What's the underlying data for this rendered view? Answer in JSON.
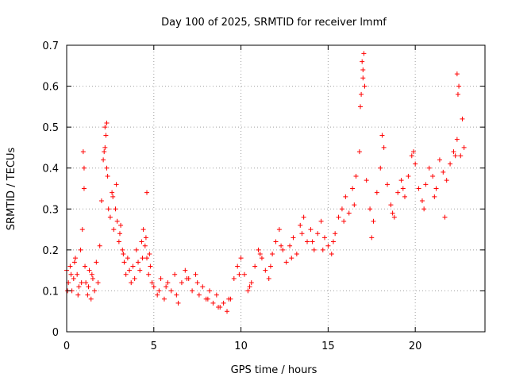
{
  "chart_data": {
    "type": "scatter",
    "title": "Day 100 of 2025, SRMTID for receiver lmmf",
    "xlabel": "GPS time / hours",
    "ylabel": "SRMTID / TECUs",
    "xlim": [
      0,
      24
    ],
    "ylim": [
      0,
      0.7
    ],
    "xticks": [
      0,
      5,
      10,
      15,
      20
    ],
    "xtick_labels": [
      "0",
      "5",
      "10",
      "15",
      "20"
    ],
    "yticks": [
      0,
      0.1,
      0.2,
      0.3,
      0.4,
      0.5,
      0.6,
      0.7
    ],
    "ytick_labels": [
      "0",
      "0.1",
      "0.2",
      "0.3",
      "0.4",
      "0.5",
      "0.6",
      "0.7"
    ],
    "grid": true,
    "marker": "+",
    "series": [
      {
        "name": "SRMTID",
        "color": "#ff0000",
        "sampling_note": "representative subset of plotted points",
        "x": [
          0.0,
          0.1,
          0.2,
          0.3,
          0.4,
          0.5,
          0.6,
          0.7,
          0.8,
          0.9,
          1.0,
          1.1,
          1.2,
          1.3,
          1.4,
          1.5,
          1.6,
          1.7,
          1.8,
          1.9,
          2.0,
          2.1,
          2.2,
          2.3,
          2.4,
          2.5,
          2.6,
          2.7,
          2.8,
          2.9,
          3.0,
          3.1,
          3.2,
          3.3,
          3.4,
          3.5,
          3.6,
          3.7,
          3.8,
          3.9,
          4.0,
          4.1,
          4.2,
          4.3,
          4.4,
          4.5,
          4.6,
          4.7,
          4.8,
          4.9,
          5.0,
          5.2,
          5.4,
          5.6,
          5.8,
          6.0,
          6.2,
          6.4,
          6.6,
          6.8,
          7.0,
          7.2,
          7.4,
          7.6,
          7.8,
          8.0,
          8.2,
          8.4,
          8.6,
          8.8,
          9.0,
          9.2,
          9.4,
          9.6,
          9.8,
          10.0,
          10.2,
          10.4,
          10.6,
          10.8,
          11.0,
          11.2,
          11.4,
          11.6,
          11.8,
          12.0,
          12.2,
          12.4,
          12.6,
          12.8,
          13.0,
          13.2,
          13.4,
          13.6,
          13.8,
          14.0,
          14.2,
          14.4,
          14.6,
          14.8,
          15.0,
          15.2,
          15.4,
          15.6,
          15.8,
          16.0,
          16.2,
          16.4,
          16.6,
          16.8,
          16.9,
          17.0,
          17.1,
          17.2,
          17.4,
          17.6,
          17.8,
          18.0,
          18.2,
          18.4,
          18.6,
          18.8,
          19.0,
          19.2,
          19.4,
          19.6,
          19.8,
          20.0,
          20.2,
          20.4,
          20.6,
          20.8,
          21.0,
          21.2,
          21.4,
          21.6,
          21.8,
          22.0,
          22.2,
          22.4,
          22.6,
          22.8,
          0.05,
          0.25,
          0.45,
          0.65,
          0.85,
          1.05,
          1.25,
          1.45,
          2.15,
          2.25,
          2.35,
          2.65,
          2.85,
          3.05,
          3.25,
          4.35,
          4.55,
          4.75,
          5.3,
          5.7,
          6.3,
          6.9,
          7.5,
          8.1,
          8.7,
          9.3,
          9.9,
          10.5,
          11.1,
          11.7,
          12.3,
          12.9,
          13.5,
          14.1,
          14.7,
          15.3,
          15.9,
          16.5,
          16.95,
          17.05,
          17.5,
          18.1,
          18.7,
          19.3,
          19.9,
          20.5,
          21.1,
          21.7,
          22.3,
          22.5,
          22.7,
          0.95,
          1.0,
          2.2,
          2.3,
          4.6,
          17.0,
          16.85,
          22.4,
          22.45
        ],
        "y": [
          0.15,
          0.12,
          0.16,
          0.1,
          0.13,
          0.18,
          0.14,
          0.11,
          0.2,
          0.25,
          0.35,
          0.12,
          0.09,
          0.15,
          0.08,
          0.13,
          0.1,
          0.17,
          0.12,
          0.21,
          0.32,
          0.42,
          0.45,
          0.4,
          0.3,
          0.28,
          0.34,
          0.25,
          0.3,
          0.27,
          0.22,
          0.26,
          0.2,
          0.17,
          0.14,
          0.18,
          0.15,
          0.12,
          0.16,
          0.13,
          0.2,
          0.17,
          0.15,
          0.22,
          0.25,
          0.21,
          0.18,
          0.14,
          0.16,
          0.12,
          0.11,
          0.09,
          0.13,
          0.08,
          0.12,
          0.1,
          0.14,
          0.07,
          0.12,
          0.15,
          0.13,
          0.1,
          0.14,
          0.09,
          0.11,
          0.08,
          0.1,
          0.07,
          0.09,
          0.06,
          0.07,
          0.05,
          0.08,
          0.13,
          0.16,
          0.18,
          0.14,
          0.1,
          0.12,
          0.16,
          0.2,
          0.18,
          0.15,
          0.13,
          0.19,
          0.22,
          0.25,
          0.2,
          0.17,
          0.21,
          0.23,
          0.19,
          0.26,
          0.28,
          0.22,
          0.25,
          0.2,
          0.24,
          0.27,
          0.23,
          0.21,
          0.19,
          0.24,
          0.28,
          0.3,
          0.33,
          0.29,
          0.35,
          0.38,
          0.44,
          0.58,
          0.64,
          0.6,
          0.37,
          0.3,
          0.27,
          0.34,
          0.4,
          0.45,
          0.36,
          0.31,
          0.28,
          0.34,
          0.37,
          0.33,
          0.38,
          0.43,
          0.41,
          0.35,
          0.32,
          0.36,
          0.4,
          0.38,
          0.35,
          0.42,
          0.39,
          0.37,
          0.41,
          0.44,
          0.47,
          0.43,
          0.45,
          0.1,
          0.14,
          0.17,
          0.09,
          0.12,
          0.16,
          0.11,
          0.14,
          0.44,
          0.48,
          0.38,
          0.33,
          0.36,
          0.24,
          0.19,
          0.18,
          0.23,
          0.19,
          0.1,
          0.11,
          0.09,
          0.13,
          0.12,
          0.08,
          0.06,
          0.08,
          0.14,
          0.11,
          0.19,
          0.16,
          0.21,
          0.18,
          0.24,
          0.22,
          0.2,
          0.22,
          0.27,
          0.31,
          0.66,
          0.68,
          0.23,
          0.48,
          0.29,
          0.35,
          0.44,
          0.3,
          0.33,
          0.28,
          0.43,
          0.6,
          0.52,
          0.44,
          0.4,
          0.5,
          0.51,
          0.34,
          0.62,
          0.55,
          0.63,
          0.58
        ]
      }
    ]
  }
}
